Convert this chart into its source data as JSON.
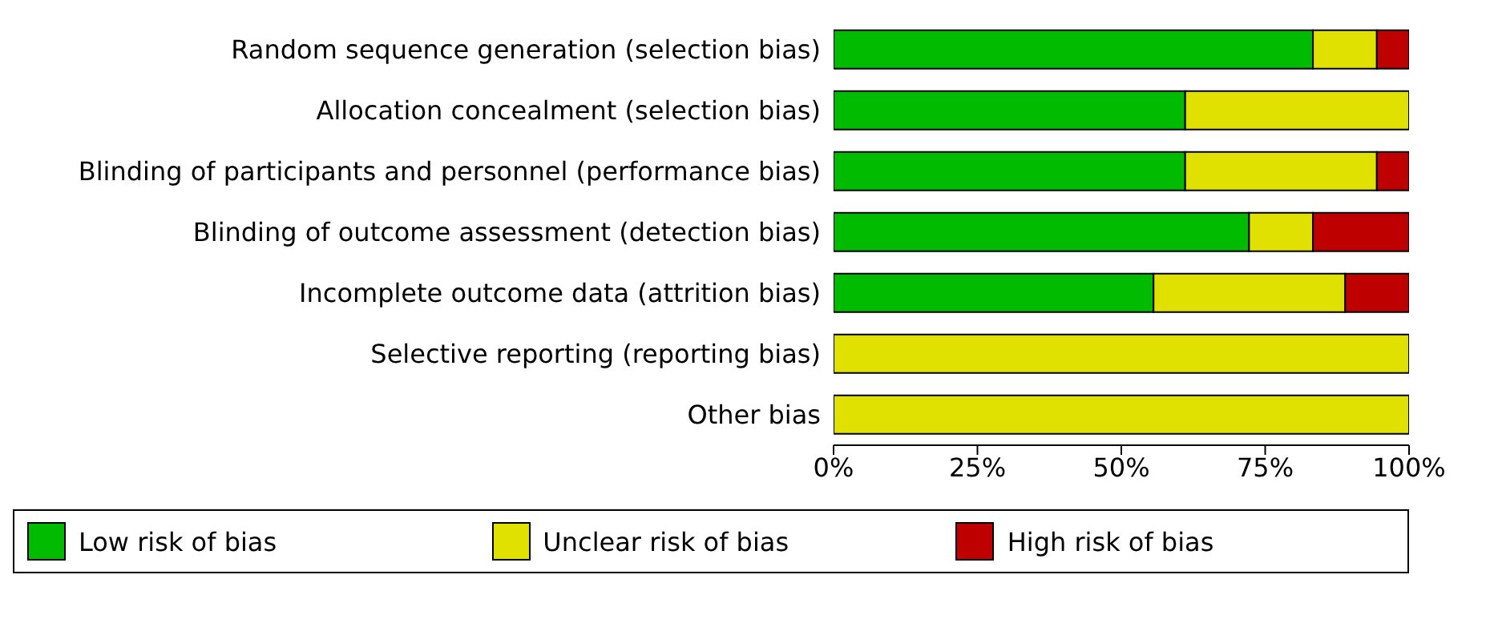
{
  "chart_data": {
    "type": "bar",
    "orientation": "horizontal",
    "stacked": true,
    "categories": [
      "Random sequence generation (selection bias)",
      "Allocation concealment (selection bias)",
      "Blinding of participants and personnel (performance bias)",
      "Blinding of outcome assessment (detection bias)",
      "Incomplete outcome data (attrition bias)",
      "Selective reporting (reporting bias)",
      "Other bias"
    ],
    "series": [
      {
        "name": "Low risk of bias",
        "color": "#00bb00",
        "values": [
          83.3,
          61.1,
          61.1,
          72.2,
          55.6,
          0,
          0
        ]
      },
      {
        "name": "Unclear risk of bias",
        "color": "#e1e100",
        "values": [
          11.1,
          38.9,
          33.3,
          11.1,
          33.3,
          100,
          100
        ]
      },
      {
        "name": "High risk of bias",
        "color": "#bf0000",
        "values": [
          5.6,
          0,
          5.6,
          16.7,
          11.1,
          0,
          0
        ]
      }
    ],
    "xlim": [
      0,
      100
    ],
    "xticks": [
      {
        "value": 0,
        "label": "0%"
      },
      {
        "value": 25,
        "label": "25%"
      },
      {
        "value": 50,
        "label": "50%"
      },
      {
        "value": 75,
        "label": "75%"
      },
      {
        "value": 100,
        "label": "100%"
      }
    ],
    "grid": false,
    "legend": "bottom"
  }
}
